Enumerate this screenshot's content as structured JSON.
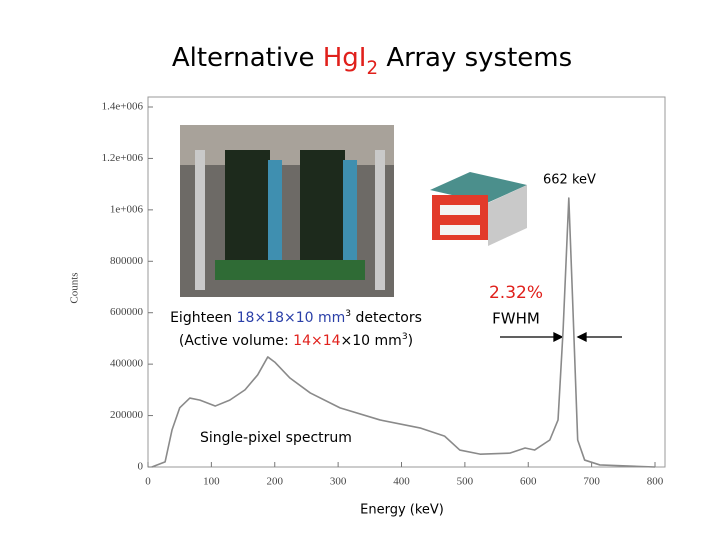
{
  "chart_data": {
    "type": "line",
    "title": [
      {
        "text": "Alternative ",
        "color": "#000000"
      },
      {
        "text": "HgI",
        "color": "#e0201b"
      },
      {
        "text": "2",
        "color": "#e0201b",
        "subscript": true
      },
      {
        "text": " Array systems",
        "color": "#000000"
      }
    ],
    "x_label": "Energy (keV)",
    "y_label": "Counts",
    "x": [
      6,
      27,
      38,
      50,
      66,
      82,
      106,
      129,
      153,
      173,
      189,
      200,
      224,
      256,
      303,
      366,
      429,
      468,
      492,
      524,
      571,
      595,
      610,
      634,
      647,
      655,
      664,
      670,
      678,
      689,
      713,
      800
    ],
    "series": [
      {
        "name": "Single-pixel spectrum",
        "color": "#8a8a8a",
        "values": [
          0,
          20000,
          145000,
          230000,
          268000,
          260000,
          237000,
          260000,
          300000,
          358000,
          428000,
          408000,
          346000,
          288000,
          230000,
          183000,
          152000,
          120000,
          66000,
          50000,
          54000,
          74000,
          66000,
          105000,
          183000,
          533000,
          1046000,
          650000,
          105000,
          27000,
          8000,
          0
        ]
      }
    ],
    "xlim": [
      0,
      800
    ],
    "ylim": [
      0,
      1400000
    ],
    "xticks": [
      0,
      100,
      200,
      300,
      400,
      500,
      600,
      700,
      800
    ],
    "yticks": [
      0,
      200000,
      400000,
      600000,
      800000,
      {
        "value": 1000000,
        "label": "1e+006"
      },
      {
        "value": 1200000,
        "label": "1.2e+006"
      },
      {
        "value": 1400000,
        "label": "1.4e+006"
      }
    ],
    "annotations": {
      "peak": "662 keV",
      "resolution": "2.32%",
      "fwhm": "FWHM",
      "caption_line1": [
        {
          "text": "Eighteen ",
          "color": "#000000"
        },
        {
          "text": "18×18×10 mm",
          "color": "#2a3fa8"
        },
        {
          "text": "3",
          "color": "#000000",
          "superscript": true
        },
        {
          "text": " detectors",
          "color": "#000000"
        }
      ],
      "caption_line2": [
        {
          "text": "(Active volume: ",
          "color": "#000000"
        },
        {
          "text": "14×14",
          "color": "#e0201b"
        },
        {
          "text": "×10 mm",
          "color": "#000000"
        },
        {
          "text": "3",
          "color": "#000000",
          "superscript": true
        },
        {
          "text": ")",
          "color": "#000000"
        }
      ]
    }
  }
}
